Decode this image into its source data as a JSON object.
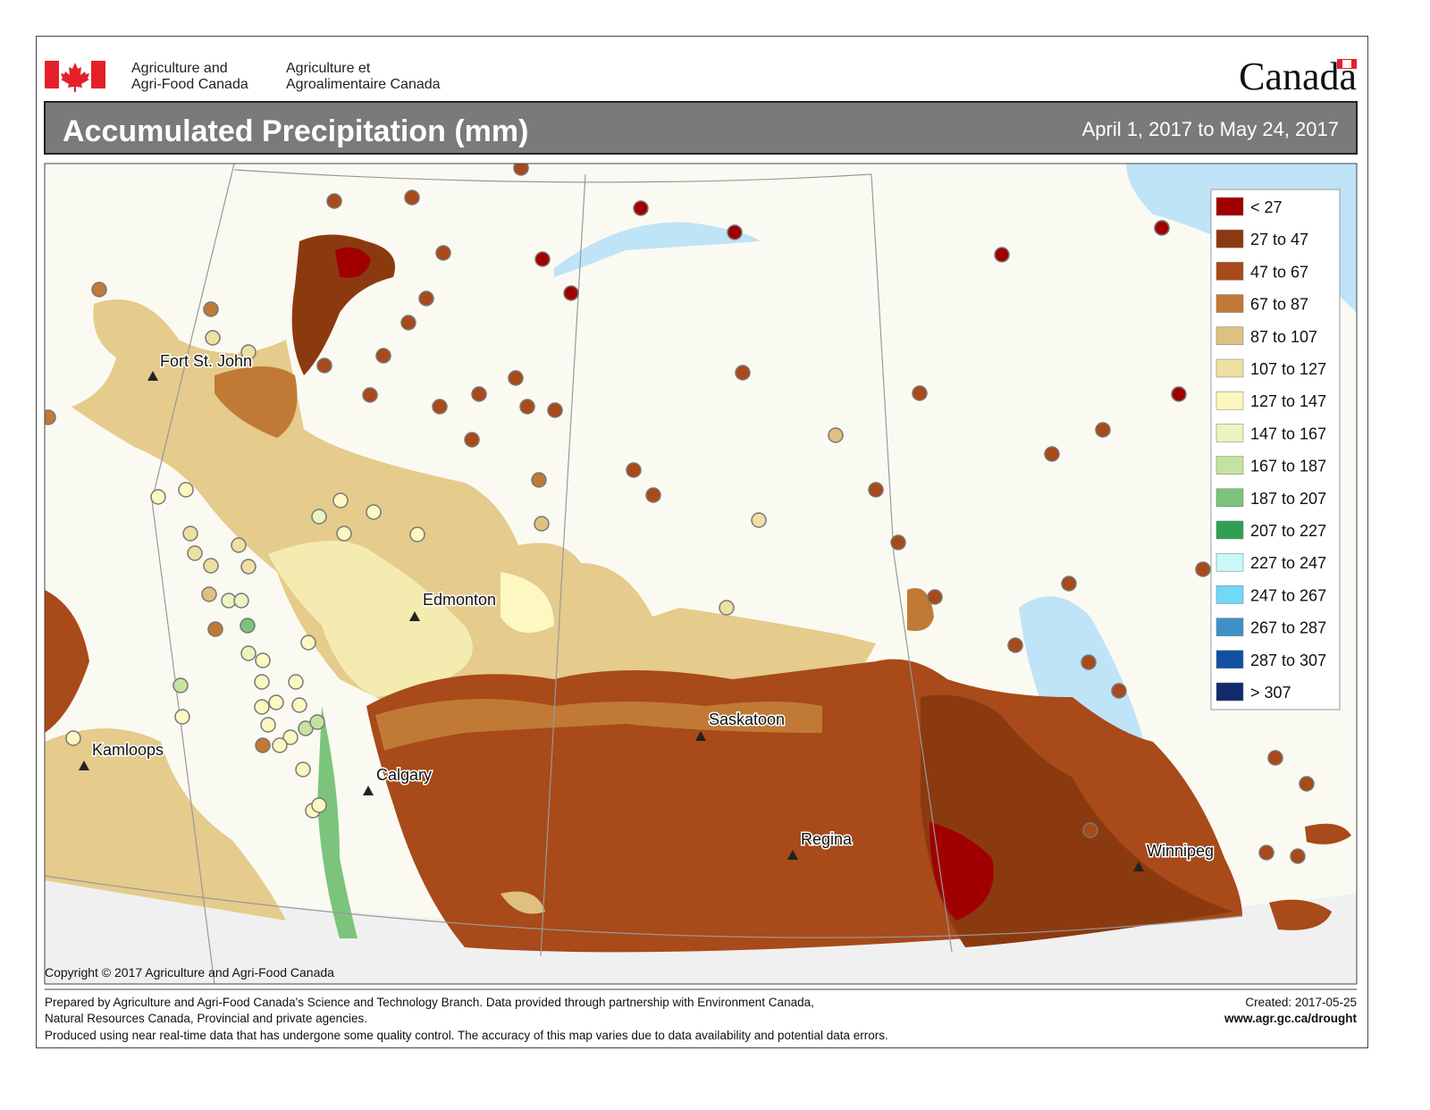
{
  "header": {
    "department_en": [
      "Agriculture and",
      "Agri-Food Canada"
    ],
    "department_fr": [
      "Agriculture et",
      "Agroalimentaire Canada"
    ],
    "wordmark": "Canada"
  },
  "title": "Accumulated Precipitation (mm)",
  "date_range": "April 1, 2017 to May 24, 2017",
  "legend": [
    {
      "label": "< 27",
      "color": "#a00000"
    },
    {
      "label": "27 to 47",
      "color": "#8b3a0f"
    },
    {
      "label": "47 to 67",
      "color": "#a84a1a"
    },
    {
      "label": "67 to 87",
      "color": "#c07a35"
    },
    {
      "label": "87 to 107",
      "color": "#dfc080"
    },
    {
      "label": "107 to 127",
      "color": "#ede0a0"
    },
    {
      "label": "127 to 147",
      "color": "#fdf8c0"
    },
    {
      "label": "147 to 167",
      "color": "#e8f5c0"
    },
    {
      "label": "167 to 187",
      "color": "#c5e3a0"
    },
    {
      "label": "187 to 207",
      "color": "#7cc47c"
    },
    {
      "label": "207 to 227",
      "color": "#30a050"
    },
    {
      "label": "227 to 247",
      "color": "#c8f8f8"
    },
    {
      "label": "247 to 267",
      "color": "#70d8f8"
    },
    {
      "label": "267 to 287",
      "color": "#4090c8"
    },
    {
      "label": "287 to 307",
      "color": "#1050a0"
    },
    {
      "label": "> 307",
      "color": "#102a6a"
    }
  ],
  "cities": [
    "Fort St. John",
    "Edmonton",
    "Saskatoon",
    "Kamloops",
    "Calgary",
    "Regina",
    "Winnipeg"
  ],
  "copyright": "Copyright © 2017 Agriculture and Agri-Food Canada",
  "footer": {
    "lines": [
      "Prepared by Agriculture and Agri-Food Canada's Science and Technology Branch. Data provided through partnership with Environment Canada,",
      "Natural Resources Canada, Provincial and private agencies.",
      "Produced using near real-time data that has undergone some quality control. The accuracy of this map varies due to data availability and potential data errors."
    ],
    "created": "Created: 2017-05-25",
    "url": "www.agr.gc.ca/drought"
  }
}
